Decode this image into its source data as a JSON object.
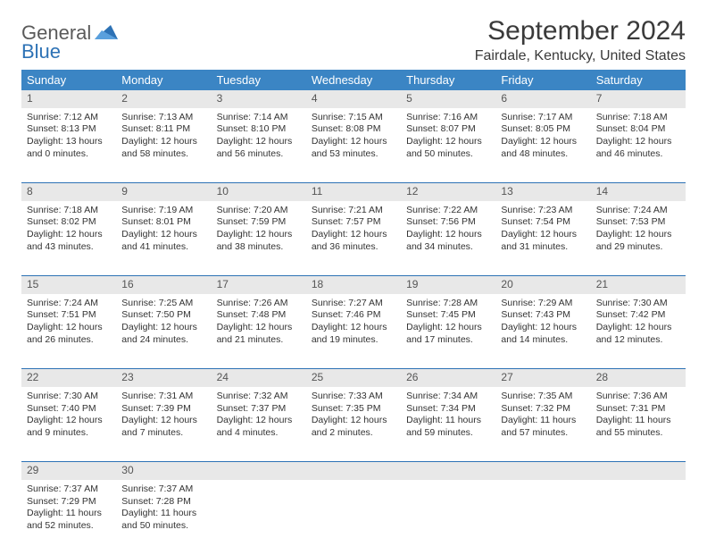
{
  "logo": {
    "line1a": "General",
    "line1b": "Blue"
  },
  "header": {
    "month_title": "September 2024",
    "location": "Fairdale, Kentucky, United States"
  },
  "colors": {
    "header_bg": "#3b85c4",
    "header_fg": "#ffffff",
    "daynum_bg": "#e8e8e8",
    "rule": "#2d72b5",
    "logo_blue": "#2d72b5",
    "text": "#333333"
  },
  "day_headers": [
    "Sunday",
    "Monday",
    "Tuesday",
    "Wednesday",
    "Thursday",
    "Friday",
    "Saturday"
  ],
  "weeks": [
    [
      {
        "n": "1",
        "sunrise": "7:12 AM",
        "sunset": "8:13 PM",
        "daylight": "13 hours and 0 minutes."
      },
      {
        "n": "2",
        "sunrise": "7:13 AM",
        "sunset": "8:11 PM",
        "daylight": "12 hours and 58 minutes."
      },
      {
        "n": "3",
        "sunrise": "7:14 AM",
        "sunset": "8:10 PM",
        "daylight": "12 hours and 56 minutes."
      },
      {
        "n": "4",
        "sunrise": "7:15 AM",
        "sunset": "8:08 PM",
        "daylight": "12 hours and 53 minutes."
      },
      {
        "n": "5",
        "sunrise": "7:16 AM",
        "sunset": "8:07 PM",
        "daylight": "12 hours and 50 minutes."
      },
      {
        "n": "6",
        "sunrise": "7:17 AM",
        "sunset": "8:05 PM",
        "daylight": "12 hours and 48 minutes."
      },
      {
        "n": "7",
        "sunrise": "7:18 AM",
        "sunset": "8:04 PM",
        "daylight": "12 hours and 46 minutes."
      }
    ],
    [
      {
        "n": "8",
        "sunrise": "7:18 AM",
        "sunset": "8:02 PM",
        "daylight": "12 hours and 43 minutes."
      },
      {
        "n": "9",
        "sunrise": "7:19 AM",
        "sunset": "8:01 PM",
        "daylight": "12 hours and 41 minutes."
      },
      {
        "n": "10",
        "sunrise": "7:20 AM",
        "sunset": "7:59 PM",
        "daylight": "12 hours and 38 minutes."
      },
      {
        "n": "11",
        "sunrise": "7:21 AM",
        "sunset": "7:57 PM",
        "daylight": "12 hours and 36 minutes."
      },
      {
        "n": "12",
        "sunrise": "7:22 AM",
        "sunset": "7:56 PM",
        "daylight": "12 hours and 34 minutes."
      },
      {
        "n": "13",
        "sunrise": "7:23 AM",
        "sunset": "7:54 PM",
        "daylight": "12 hours and 31 minutes."
      },
      {
        "n": "14",
        "sunrise": "7:24 AM",
        "sunset": "7:53 PM",
        "daylight": "12 hours and 29 minutes."
      }
    ],
    [
      {
        "n": "15",
        "sunrise": "7:24 AM",
        "sunset": "7:51 PM",
        "daylight": "12 hours and 26 minutes."
      },
      {
        "n": "16",
        "sunrise": "7:25 AM",
        "sunset": "7:50 PM",
        "daylight": "12 hours and 24 minutes."
      },
      {
        "n": "17",
        "sunrise": "7:26 AM",
        "sunset": "7:48 PM",
        "daylight": "12 hours and 21 minutes."
      },
      {
        "n": "18",
        "sunrise": "7:27 AM",
        "sunset": "7:46 PM",
        "daylight": "12 hours and 19 minutes."
      },
      {
        "n": "19",
        "sunrise": "7:28 AM",
        "sunset": "7:45 PM",
        "daylight": "12 hours and 17 minutes."
      },
      {
        "n": "20",
        "sunrise": "7:29 AM",
        "sunset": "7:43 PM",
        "daylight": "12 hours and 14 minutes."
      },
      {
        "n": "21",
        "sunrise": "7:30 AM",
        "sunset": "7:42 PM",
        "daylight": "12 hours and 12 minutes."
      }
    ],
    [
      {
        "n": "22",
        "sunrise": "7:30 AM",
        "sunset": "7:40 PM",
        "daylight": "12 hours and 9 minutes."
      },
      {
        "n": "23",
        "sunrise": "7:31 AM",
        "sunset": "7:39 PM",
        "daylight": "12 hours and 7 minutes."
      },
      {
        "n": "24",
        "sunrise": "7:32 AM",
        "sunset": "7:37 PM",
        "daylight": "12 hours and 4 minutes."
      },
      {
        "n": "25",
        "sunrise": "7:33 AM",
        "sunset": "7:35 PM",
        "daylight": "12 hours and 2 minutes."
      },
      {
        "n": "26",
        "sunrise": "7:34 AM",
        "sunset": "7:34 PM",
        "daylight": "11 hours and 59 minutes."
      },
      {
        "n": "27",
        "sunrise": "7:35 AM",
        "sunset": "7:32 PM",
        "daylight": "11 hours and 57 minutes."
      },
      {
        "n": "28",
        "sunrise": "7:36 AM",
        "sunset": "7:31 PM",
        "daylight": "11 hours and 55 minutes."
      }
    ],
    [
      {
        "n": "29",
        "sunrise": "7:37 AM",
        "sunset": "7:29 PM",
        "daylight": "11 hours and 52 minutes."
      },
      {
        "n": "30",
        "sunrise": "7:37 AM",
        "sunset": "7:28 PM",
        "daylight": "11 hours and 50 minutes."
      },
      null,
      null,
      null,
      null,
      null
    ]
  ],
  "labels": {
    "sunrise": "Sunrise: ",
    "sunset": "Sunset: ",
    "daylight": "Daylight: "
  }
}
